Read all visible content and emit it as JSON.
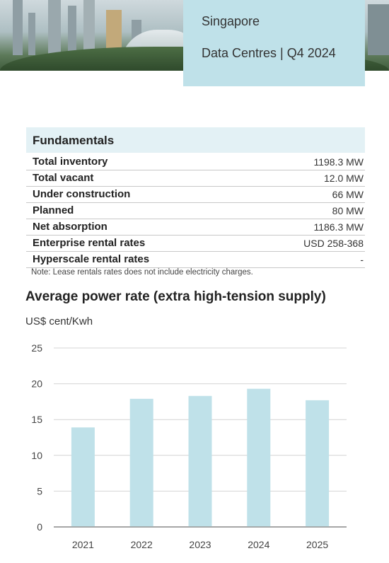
{
  "header": {
    "location": "Singapore",
    "subtitle": "Data Centres | Q4 2024"
  },
  "fundamentals": {
    "title": "Fundamentals",
    "rows": [
      {
        "label": "Total inventory",
        "value": "1198.3 MW"
      },
      {
        "label": "Total vacant",
        "value": "12.0 MW"
      },
      {
        "label": "Under construction",
        "value": "66 MW"
      },
      {
        "label": "Planned",
        "value": "80 MW"
      },
      {
        "label": "Net absorption",
        "value": "1186.3 MW"
      },
      {
        "label": "Enterprise rental rates",
        "value": "USD 258-368"
      },
      {
        "label": "Hyperscale rental rates",
        "value": "-"
      }
    ],
    "note": "Note: Lease rentals rates does not include electricity charges."
  },
  "chart_data": {
    "type": "bar",
    "title": "Average power rate (extra high-tension supply)",
    "ylabel": "US$ cent/Kwh",
    "xlabel": "",
    "categories": [
      "2021",
      "2022",
      "2023",
      "2024",
      "2025"
    ],
    "values": [
      13.9,
      17.9,
      18.3,
      19.3,
      17.7
    ],
    "ylim": [
      0,
      25
    ],
    "yticks": [
      "0",
      "5",
      "10",
      "15",
      "20",
      "25"
    ],
    "grid": true,
    "bar_color": "#bfe1e9"
  }
}
